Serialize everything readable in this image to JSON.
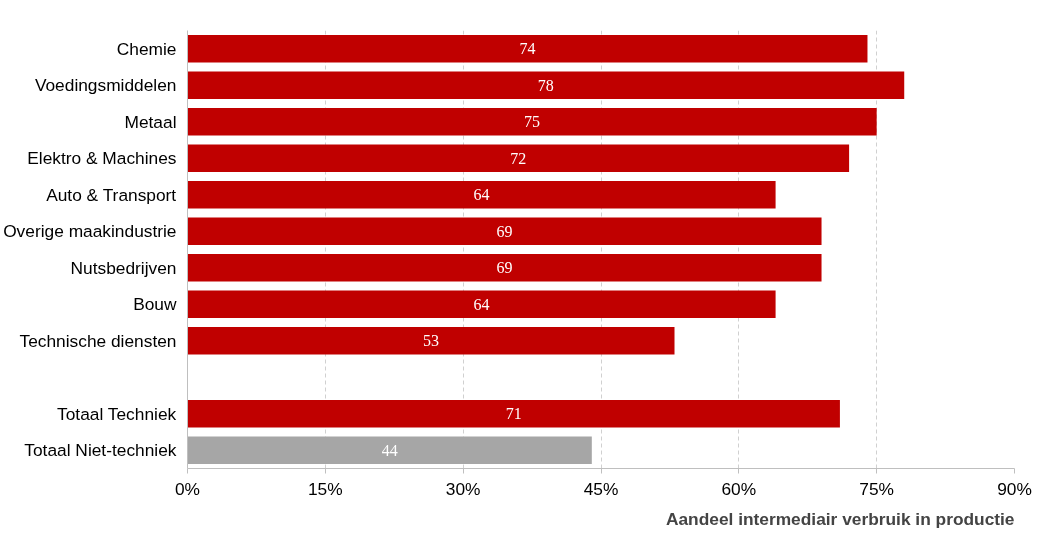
{
  "chart_data": {
    "type": "bar",
    "orientation": "horizontal",
    "xlabel": "Aandeel intermediair verbruik in productie",
    "categories": [
      "Chemie",
      "Voedingsmiddelen",
      "Metaal",
      "Elektro & Machines",
      "Auto & Transport",
      "Overige maakindustrie",
      "Nutsbedrijven",
      "Bouw",
      "Technische diensten",
      null,
      "Totaal Techniek",
      "Totaal Niet-techniek"
    ],
    "values": [
      74,
      78,
      75,
      72,
      64,
      69,
      69,
      64,
      53,
      null,
      71,
      44
    ],
    "colors": [
      "#c00000",
      "#c00000",
      "#c00000",
      "#c00000",
      "#c00000",
      "#c00000",
      "#c00000",
      "#c00000",
      "#c00000",
      "#c00000",
      "#c00000",
      "#a6a6a6"
    ],
    "xlim": [
      0,
      90
    ],
    "xticks": [
      {
        "value": 0,
        "label": "0%"
      },
      {
        "value": 15,
        "label": "15%"
      },
      {
        "value": 30,
        "label": "30%"
      },
      {
        "value": 45,
        "label": "45%"
      },
      {
        "value": 60,
        "label": "60%"
      },
      {
        "value": 75,
        "label": "75%"
      },
      {
        "value": 90,
        "label": "90%"
      }
    ],
    "grid": "x",
    "data_labels": true
  }
}
